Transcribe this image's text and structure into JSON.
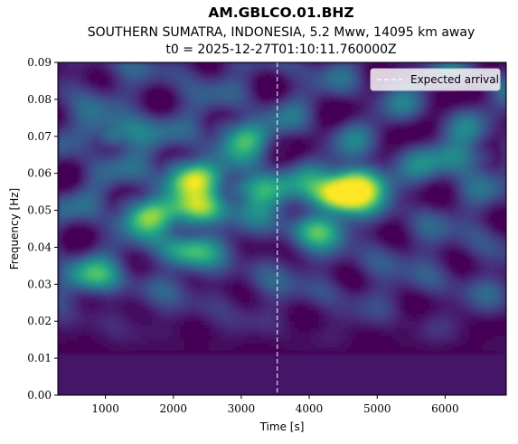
{
  "chart_data": {
    "type": "heatmap",
    "title": "AM.GBLCO.01.BHZ",
    "subtitle_line1": "SOUTHERN SUMATRA, INDONESIA, 5.2 Mww, 14095 km away",
    "subtitle_line2": "t0 = 2025-12-27T01:10:11.760000Z",
    "xlabel": "Time [s]",
    "ylabel": "Frequency [Hz]",
    "xlim": [
      300,
      6900
    ],
    "ylim": [
      0.0,
      0.09
    ],
    "x_ticks": [
      1000,
      2000,
      3000,
      4000,
      5000,
      6000
    ],
    "x_tick_labels": [
      "1000",
      "2000",
      "3000",
      "4000",
      "5000",
      "6000"
    ],
    "y_ticks": [
      0.0,
      0.01,
      0.02,
      0.03,
      0.04,
      0.05,
      0.06,
      0.07,
      0.08,
      0.09
    ],
    "y_tick_labels": [
      "0.00",
      "0.01",
      "0.02",
      "0.03",
      "0.04",
      "0.05",
      "0.06",
      "0.07",
      "0.08",
      "0.09"
    ],
    "expected_arrival_s": 3530,
    "legend": {
      "label": "Expected arrival",
      "placement": "top-right"
    },
    "colormap": [
      "#440154",
      "#472d7b",
      "#3b528b",
      "#2c728e",
      "#21918c",
      "#28ae80",
      "#5ec962",
      "#addc30",
      "#fde725"
    ],
    "hotspots": [
      {
        "t": 2250,
        "f": 0.059,
        "intensity": 0.7
      },
      {
        "t": 2400,
        "f": 0.05,
        "intensity": 0.7
      },
      {
        "t": 1600,
        "f": 0.049,
        "intensity": 0.55
      },
      {
        "t": 2150,
        "f": 0.039,
        "intensity": 0.5
      },
      {
        "t": 3300,
        "f": 0.056,
        "intensity": 0.6
      },
      {
        "t": 3000,
        "f": 0.07,
        "intensity": 0.45
      },
      {
        "t": 1200,
        "f": 0.071,
        "intensity": 0.4
      },
      {
        "t": 4450,
        "f": 0.054,
        "intensity": 1.0
      },
      {
        "t": 4750,
        "f": 0.058,
        "intensity": 0.65
      },
      {
        "t": 4100,
        "f": 0.045,
        "intensity": 0.45
      },
      {
        "t": 800,
        "f": 0.032,
        "intensity": 0.4
      },
      {
        "t": 6200,
        "f": 0.064,
        "intensity": 0.4
      }
    ]
  }
}
